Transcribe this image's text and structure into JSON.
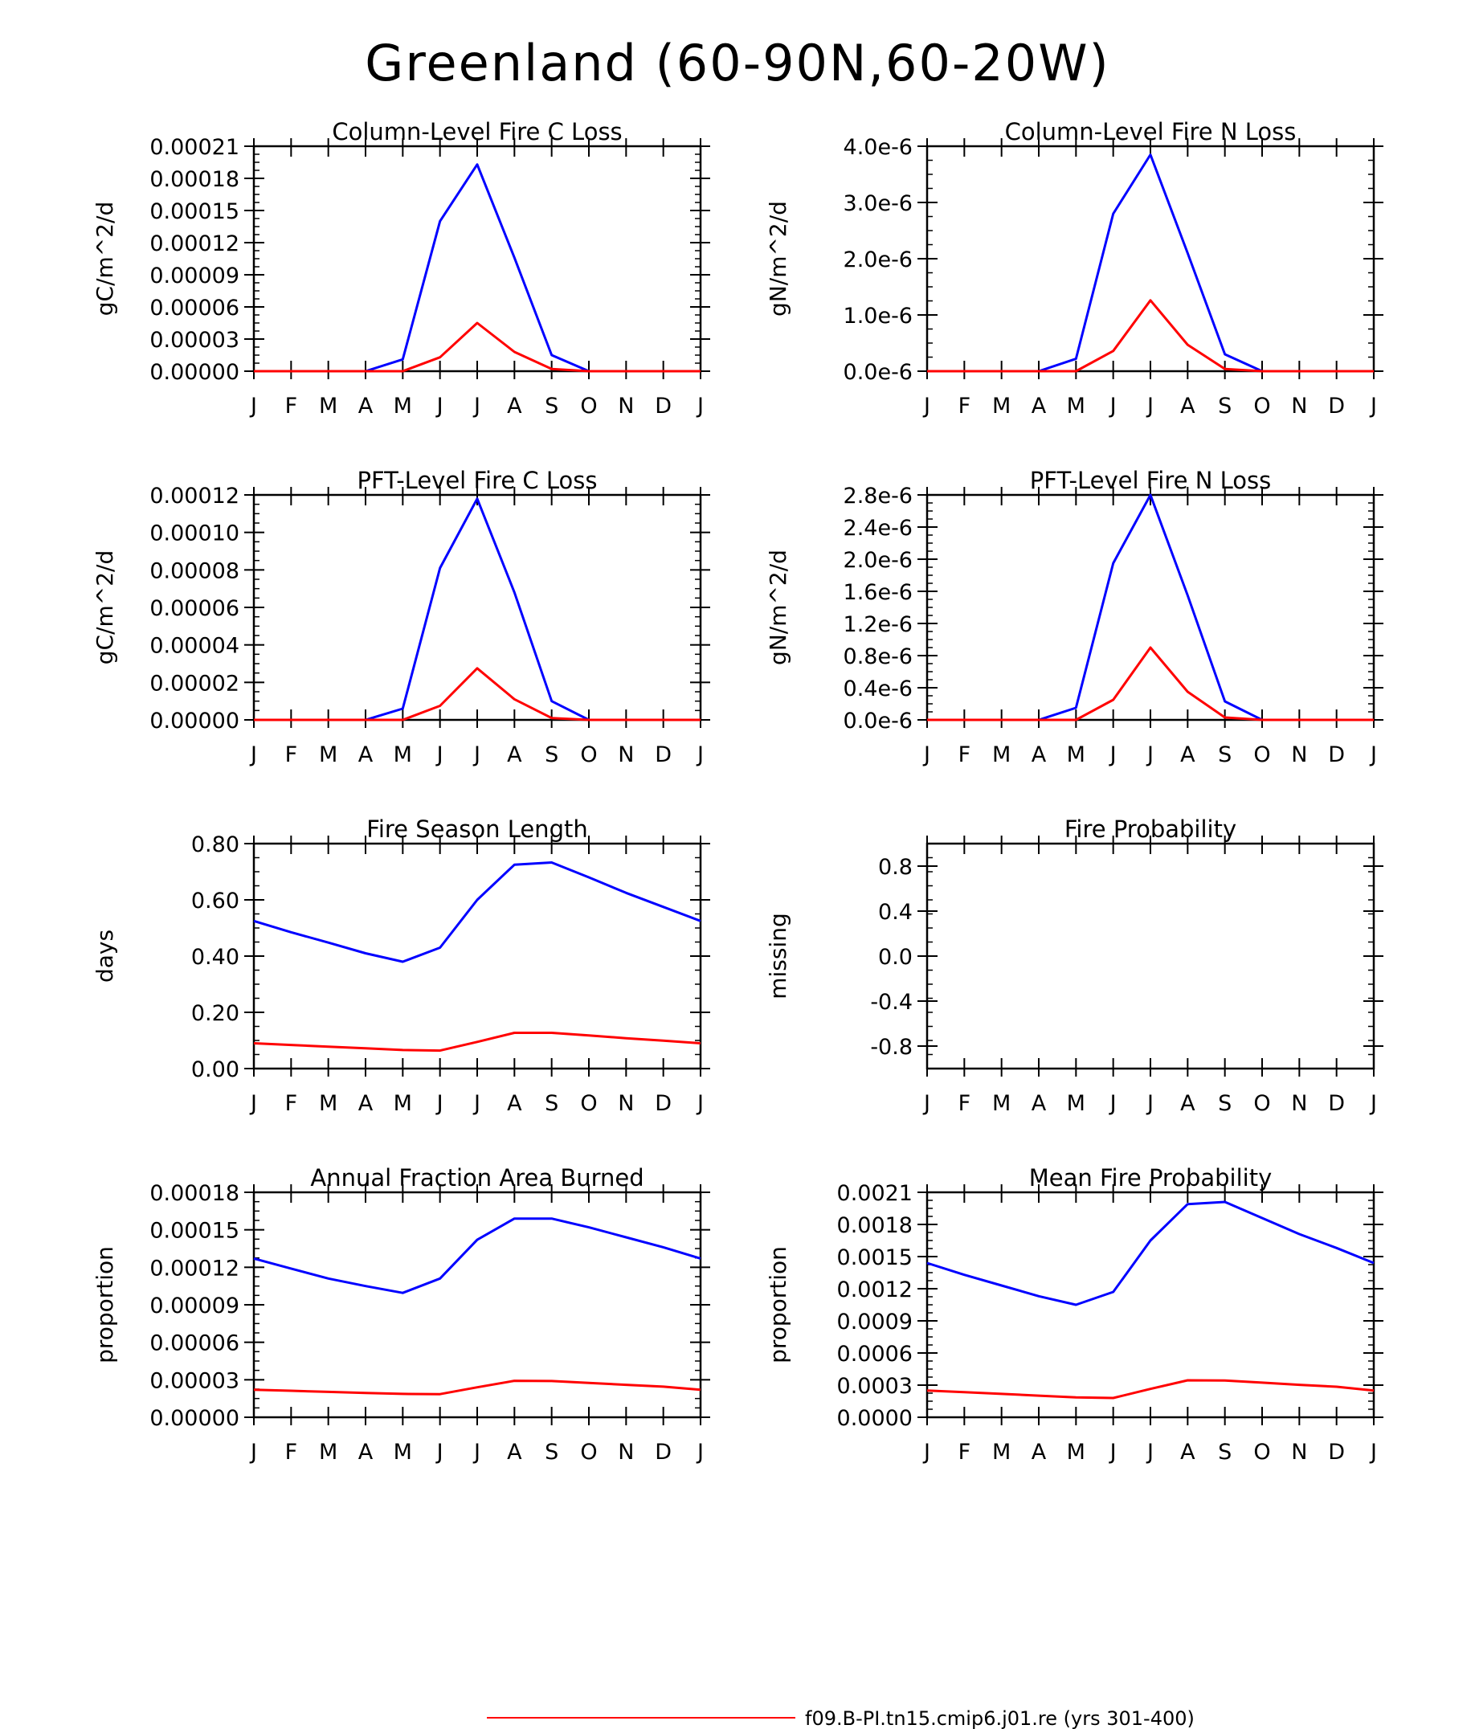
{
  "page_title": "Greenland (60-90N,60-20W)",
  "legend": [
    {
      "label": "f09.B-PI.tn15.cmip6.j01.re (yrs 301-400)",
      "color": "#ff0000"
    }
  ],
  "month_ticks": [
    "J",
    "F",
    "M",
    "A",
    "M",
    "J",
    "J",
    "A",
    "S",
    "O",
    "N",
    "D",
    "J"
  ],
  "chart_data": [
    {
      "type": "line",
      "title": "Column-Level Fire C Loss",
      "ylabel": "gC/m^2/d",
      "ylim": [
        0,
        0.00021
      ],
      "yticks": [
        "0.00000",
        "0.00003",
        "0.00006",
        "0.00009",
        "0.00012",
        "0.00015",
        "0.00018",
        "0.00021"
      ],
      "x": [
        "J",
        "F",
        "M",
        "A",
        "M",
        "J",
        "J",
        "A",
        "S",
        "O",
        "N",
        "D",
        "J"
      ],
      "series": [
        {
          "color": "#0000ff",
          "values": [
            0,
            0,
            0,
            0,
            1.1e-05,
            0.00014,
            0.000193,
            0.000106,
            1.5e-05,
            0,
            0,
            0,
            0
          ]
        },
        {
          "color": "#ff0000",
          "values": [
            0,
            0,
            0,
            0,
            0,
            1.3e-05,
            4.5e-05,
            1.8e-05,
            2e-06,
            0,
            0,
            0,
            0
          ]
        }
      ]
    },
    {
      "type": "line",
      "title": "Column-Level Fire N Loss",
      "ylabel": "gN/m^2/d",
      "ylim": [
        0,
        4e-06
      ],
      "yticks": [
        "0.0e-6",
        "1.0e-6",
        "2.0e-6",
        "3.0e-6",
        "4.0e-6"
      ],
      "x": [
        "J",
        "F",
        "M",
        "A",
        "M",
        "J",
        "J",
        "A",
        "S",
        "O",
        "N",
        "D",
        "J"
      ],
      "series": [
        {
          "color": "#0000ff",
          "values": [
            0,
            0,
            0,
            0,
            2.2e-07,
            2.8e-06,
            3.85e-06,
            2.1e-06,
            3e-07,
            0,
            0,
            0,
            0
          ]
        },
        {
          "color": "#ff0000",
          "values": [
            0,
            0,
            0,
            0,
            0,
            3.6e-07,
            1.26e-06,
            4.7e-07,
            4e-08,
            0,
            0,
            0,
            0
          ]
        }
      ]
    },
    {
      "type": "line",
      "title": "PFT-Level Fire C Loss",
      "ylabel": "gC/m^2/d",
      "ylim": [
        0,
        0.00012
      ],
      "yticks": [
        "0.00000",
        "0.00002",
        "0.00004",
        "0.00006",
        "0.00008",
        "0.00010",
        "0.00012"
      ],
      "x": [
        "J",
        "F",
        "M",
        "A",
        "M",
        "J",
        "J",
        "A",
        "S",
        "O",
        "N",
        "D",
        "J"
      ],
      "series": [
        {
          "color": "#0000ff",
          "values": [
            0,
            0,
            0,
            0,
            6e-06,
            8.1e-05,
            0.000118,
            6.8e-05,
            1e-05,
            0,
            0,
            0,
            0
          ]
        },
        {
          "color": "#ff0000",
          "values": [
            0,
            0,
            0,
            0,
            0,
            7.5e-06,
            2.75e-05,
            1.1e-05,
            1e-06,
            0,
            0,
            0,
            0
          ]
        }
      ]
    },
    {
      "type": "line",
      "title": "PFT-Level Fire N Loss",
      "ylabel": "gN/m^2/d",
      "ylim": [
        0,
        2.8e-06
      ],
      "yticks": [
        "0.0e-6",
        "0.4e-6",
        "0.8e-6",
        "1.2e-6",
        "1.6e-6",
        "2.0e-6",
        "2.4e-6",
        "2.8e-6"
      ],
      "x": [
        "J",
        "F",
        "M",
        "A",
        "M",
        "J",
        "J",
        "A",
        "S",
        "O",
        "N",
        "D",
        "J"
      ],
      "series": [
        {
          "color": "#0000ff",
          "values": [
            0,
            0,
            0,
            0,
            1.5e-07,
            1.95e-06,
            2.8e-06,
            1.55e-06,
            2.3e-07,
            0,
            0,
            0,
            0
          ]
        },
        {
          "color": "#ff0000",
          "values": [
            0,
            0,
            0,
            0,
            0,
            2.5e-07,
            9e-07,
            3.5e-07,
            3e-08,
            0,
            0,
            0,
            0
          ]
        }
      ]
    },
    {
      "type": "line",
      "title": "Fire Season Length",
      "ylabel": "days",
      "ylim": [
        0,
        0.8
      ],
      "yticks": [
        "0.00",
        "0.20",
        "0.40",
        "0.60",
        "0.80"
      ],
      "x": [
        "J",
        "F",
        "M",
        "A",
        "M",
        "J",
        "J",
        "A",
        "S",
        "O",
        "N",
        "D",
        "J"
      ],
      "series": [
        {
          "color": "#0000ff",
          "values": [
            0.525,
            0.485,
            0.448,
            0.41,
            0.38,
            0.43,
            0.6,
            0.725,
            0.733,
            0.68,
            0.625,
            0.575,
            0.525
          ]
        },
        {
          "color": "#ff0000",
          "values": [
            0.09,
            0.084,
            0.078,
            0.072,
            0.066,
            0.064,
            0.095,
            0.127,
            0.127,
            0.118,
            0.108,
            0.099,
            0.09
          ]
        }
      ]
    },
    {
      "type": "line",
      "title": "Fire Probability",
      "ylabel": "missing",
      "ylim": [
        -1,
        1
      ],
      "yticks": [
        "-0.8",
        "-0.4",
        "0.0",
        "0.4",
        "0.8"
      ],
      "ytick_values": [
        -0.8,
        -0.4,
        0,
        0.4,
        0.8
      ],
      "x": [
        "J",
        "F",
        "M",
        "A",
        "M",
        "J",
        "J",
        "A",
        "S",
        "O",
        "N",
        "D",
        "J"
      ],
      "series": []
    },
    {
      "type": "line",
      "title": "Annual Fraction Area Burned",
      "ylabel": "proportion",
      "ylim": [
        0,
        0.00018
      ],
      "yticks": [
        "0.00000",
        "0.00003",
        "0.00006",
        "0.00009",
        "0.00012",
        "0.00015",
        "0.00018"
      ],
      "x": [
        "J",
        "F",
        "M",
        "A",
        "M",
        "J",
        "J",
        "A",
        "S",
        "O",
        "N",
        "D",
        "J"
      ],
      "series": [
        {
          "color": "#0000ff",
          "values": [
            0.000127,
            0.000119,
            0.000111,
            0.000105,
            9.95e-05,
            0.000111,
            0.000142,
            0.000159,
            0.000159,
            0.000152,
            0.000144,
            0.000136,
            0.000127
          ]
        },
        {
          "color": "#ff0000",
          "values": [
            2.2e-05,
            2.12e-05,
            2.03e-05,
            1.95e-05,
            1.87e-05,
            1.85e-05,
            2.4e-05,
            2.92e-05,
            2.9e-05,
            2.75e-05,
            2.6e-05,
            2.45e-05,
            2.2e-05
          ]
        }
      ]
    },
    {
      "type": "line",
      "title": "Mean Fire Probability",
      "ylabel": "proportion",
      "ylim": [
        0,
        0.0021
      ],
      "yticks": [
        "0.0000",
        "0.0003",
        "0.0006",
        "0.0009",
        "0.0012",
        "0.0015",
        "0.0018",
        "0.0021"
      ],
      "x": [
        "J",
        "F",
        "M",
        "A",
        "M",
        "J",
        "J",
        "A",
        "S",
        "O",
        "N",
        "D",
        "J"
      ],
      "series": [
        {
          "color": "#0000ff",
          "values": [
            0.00144,
            0.00133,
            0.00123,
            0.00113,
            0.00105,
            0.00117,
            0.00165,
            0.00199,
            0.00201,
            0.00186,
            0.00171,
            0.00158,
            0.00144
          ]
        },
        {
          "color": "#ff0000",
          "values": [
            0.00025,
            0.000235,
            0.000218,
            0.000202,
            0.000186,
            0.00018,
            0.000265,
            0.000345,
            0.000343,
            0.000323,
            0.000303,
            0.000285,
            0.00025
          ]
        }
      ]
    }
  ]
}
